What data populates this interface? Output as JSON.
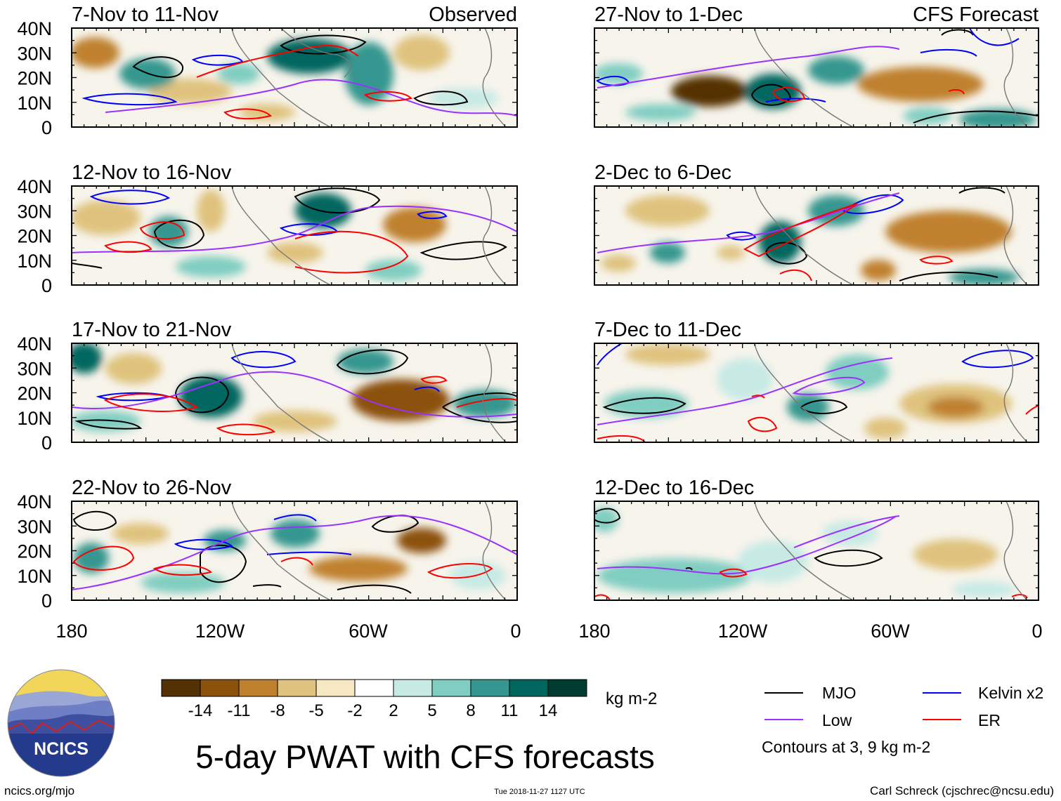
{
  "figure": {
    "title": "5-day PWAT with CFS forecasts",
    "site": "ncics.org/mjo",
    "timestamp": "Tue 2018-11-27 1127 UTC",
    "credit": "Carl Schreck (cjschrec@ncsu.edu)",
    "logo_text": "NCICS",
    "column_labels": {
      "observed": "Observed",
      "forecast": "CFS Forecast"
    }
  },
  "axes": {
    "lat_labels": [
      "40N",
      "30N",
      "20N",
      "10N",
      "0"
    ],
    "lon_labels": [
      "180",
      "120W",
      "60W",
      "0"
    ]
  },
  "panels": [
    {
      "id": "p1",
      "period": "7-Nov to 11-Nov",
      "type": "observed"
    },
    {
      "id": "p2",
      "period": "12-Nov to 16-Nov",
      "type": "observed"
    },
    {
      "id": "p3",
      "period": "17-Nov to 21-Nov",
      "type": "observed"
    },
    {
      "id": "p4",
      "period": "22-Nov to 26-Nov",
      "type": "observed"
    },
    {
      "id": "p5",
      "period": "27-Nov to 1-Dec",
      "type": "forecast"
    },
    {
      "id": "p6",
      "period": "2-Dec to 6-Dec",
      "type": "forecast"
    },
    {
      "id": "p7",
      "period": "7-Dec to 11-Dec",
      "type": "forecast"
    },
    {
      "id": "p8",
      "period": "12-Dec to 16-Dec",
      "type": "forecast"
    }
  ],
  "colorbar": {
    "labels": [
      "-14",
      "-11",
      "-8",
      "-5",
      "-2",
      "2",
      "5",
      "8",
      "11",
      "14"
    ],
    "unit": "kg m-2",
    "colors": [
      "#543005",
      "#8c510a",
      "#bf812d",
      "#dfc27d",
      "#f6e8c3",
      "#ffffff",
      "#c7eae5",
      "#80cdc1",
      "#35978f",
      "#01665e",
      "#003c30"
    ]
  },
  "legend": {
    "items": [
      {
        "label": "MJO",
        "color": "#000000"
      },
      {
        "label": "Kelvin x2",
        "color": "#0000ff"
      },
      {
        "label": "Low",
        "color": "#9b30ff"
      },
      {
        "label": "ER",
        "color": "#ff0000"
      }
    ],
    "note": "Contours at 3, 9 kg m-2"
  }
}
